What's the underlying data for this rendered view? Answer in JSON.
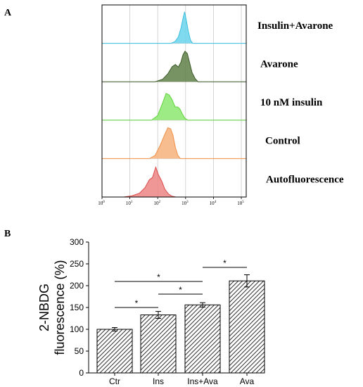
{
  "panel_a_label": "A",
  "panel_b_label": "B",
  "chart_data": [
    {
      "type": "area",
      "panel": "A",
      "x_scale": "log",
      "xlim": [
        1,
        150000
      ],
      "x_ticks": [
        {
          "value": 1,
          "base": "10",
          "exp": "0"
        },
        {
          "value": 10,
          "base": "10",
          "exp": "1"
        },
        {
          "value": 100,
          "base": "10",
          "exp": "2"
        },
        {
          "value": 1000,
          "base": "10",
          "exp": "3"
        },
        {
          "value": 10000,
          "base": "10",
          "exp": "4"
        },
        {
          "value": 100000,
          "base": "10",
          "exp": "5"
        }
      ],
      "grid": true,
      "series": [
        {
          "name": "Insulin+Avarone",
          "fill": "#6ad3ec",
          "line": "#3bbfe0",
          "x": [
            1,
            300,
            420,
            550,
            680,
            800,
            920,
            1050,
            1250,
            1500,
            1800,
            150000
          ],
          "y": [
            0,
            0,
            0.06,
            0.2,
            0.48,
            0.78,
            1.0,
            0.75,
            0.38,
            0.1,
            0,
            0
          ]
        },
        {
          "name": "Avarone",
          "fill": "#5f7f48",
          "line": "#3d5c2a",
          "x": [
            1,
            80,
            150,
            230,
            330,
            430,
            550,
            680,
            800,
            950,
            1150,
            1400,
            1700,
            2200,
            2800,
            150000
          ],
          "y": [
            0,
            0,
            0.08,
            0.25,
            0.48,
            0.55,
            0.47,
            0.62,
            0.85,
            0.97,
            0.9,
            0.6,
            0.3,
            0.1,
            0,
            0
          ]
        },
        {
          "name": "10 nM insulin",
          "fill": "#8ce86e",
          "line": "#5fd33c",
          "x": [
            1,
            60,
            100,
            150,
            200,
            260,
            330,
            420,
            520,
            620,
            760,
            950,
            1200,
            150000
          ],
          "y": [
            0,
            0,
            0.15,
            0.55,
            0.85,
            0.8,
            0.65,
            0.42,
            0.42,
            0.36,
            0.2,
            0.06,
            0,
            0
          ]
        },
        {
          "name": "Control",
          "fill": "#f7b27a",
          "line": "#f0914a",
          "x": [
            1,
            50,
            80,
            120,
            170,
            230,
            290,
            350,
            430,
            530,
            650,
            150000
          ],
          "y": [
            0,
            0,
            0.1,
            0.4,
            0.72,
            0.98,
            0.95,
            0.75,
            0.35,
            0.1,
            0,
            0
          ]
        },
        {
          "name": "Autofluorescence",
          "fill": "#ec8585",
          "line": "#d94a4a",
          "x": [
            1,
            6,
            12,
            22,
            35,
            50,
            65,
            85,
            105,
            140,
            180,
            240,
            320,
            450,
            150000
          ],
          "y": [
            0,
            0,
            0.04,
            0.12,
            0.3,
            0.55,
            0.62,
            0.95,
            0.72,
            0.5,
            0.25,
            0.1,
            0.03,
            0,
            0
          ]
        }
      ]
    },
    {
      "type": "bar",
      "panel": "B",
      "categories": [
        "Ctr",
        "Ins",
        "Ins+Ava",
        "Ava"
      ],
      "values": [
        100,
        133,
        156,
        211
      ],
      "errors": [
        4,
        8,
        5,
        14
      ],
      "ylabel_line1": "2-NBDG",
      "ylabel_line2": "fluorescence (%)",
      "ylim": [
        0,
        300
      ],
      "y_ticks": [
        "0",
        "50",
        "100",
        "150",
        "200",
        "250",
        "300"
      ],
      "bar_fill": "hatched",
      "significance": [
        {
          "from": 0,
          "to": 1,
          "label": "*"
        },
        {
          "from": 0,
          "to": 2,
          "label": "*"
        },
        {
          "from": 1,
          "to": 2,
          "label": "*"
        },
        {
          "from": 2,
          "to": 3,
          "label": "*"
        }
      ]
    }
  ]
}
